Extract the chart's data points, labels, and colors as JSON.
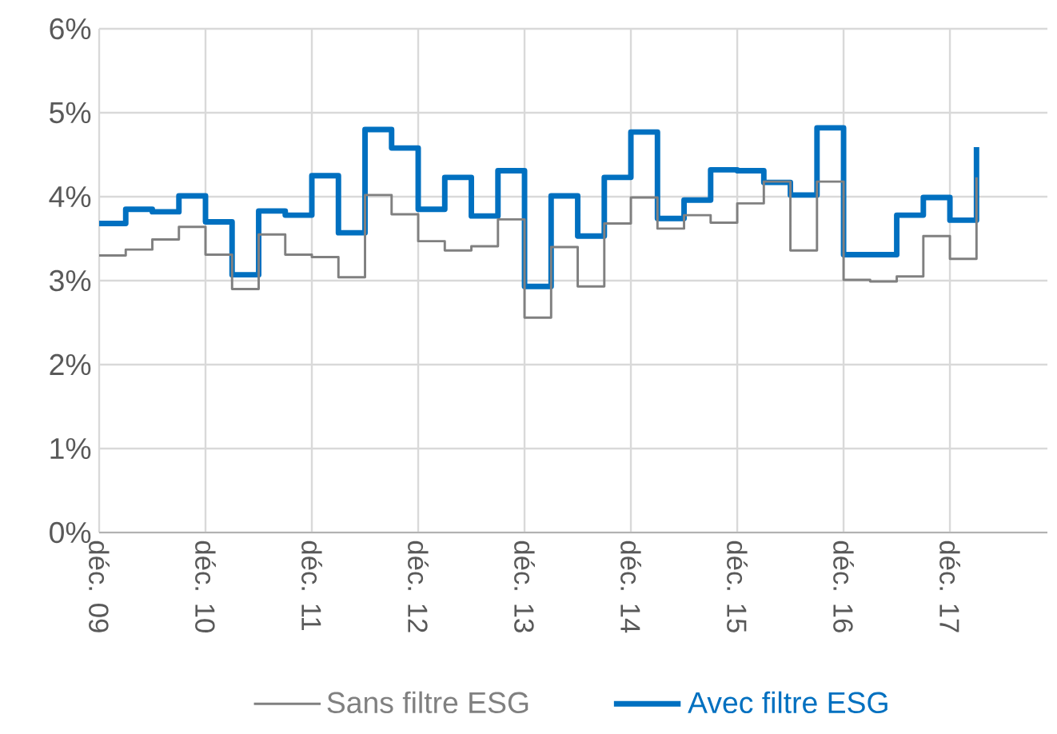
{
  "chart_data": {
    "type": "step",
    "x": [
      "2009-12",
      "2010-03",
      "2010-06",
      "2010-09",
      "2010-12",
      "2011-03",
      "2011-06",
      "2011-09",
      "2011-12",
      "2012-03",
      "2012-06",
      "2012-09",
      "2012-12",
      "2013-03",
      "2013-06",
      "2013-09",
      "2013-12",
      "2014-03",
      "2014-06",
      "2014-09",
      "2014-12",
      "2015-03",
      "2015-06",
      "2015-09",
      "2015-12",
      "2016-03",
      "2016-06",
      "2016-09",
      "2016-12",
      "2017-03",
      "2017-06",
      "2017-09",
      "2017-12",
      "2018-03"
    ],
    "series": [
      {
        "name": "Sans filtre ESG",
        "color": "#808080",
        "values": [
          3.3,
          3.37,
          3.49,
          3.64,
          3.31,
          2.9,
          3.55,
          3.31,
          3.28,
          3.04,
          4.02,
          3.79,
          3.47,
          3.36,
          3.41,
          3.73,
          2.56,
          3.4,
          2.93,
          3.68,
          3.99,
          3.62,
          3.78,
          3.69,
          3.92,
          4.18,
          3.36,
          4.18,
          3.01,
          2.99,
          3.05,
          3.53,
          3.26,
          4.23
        ]
      },
      {
        "name": "Avec filtre ESG",
        "color": "#0070c0",
        "values": [
          3.68,
          3.85,
          3.82,
          4.01,
          3.7,
          3.07,
          3.83,
          3.78,
          4.25,
          3.57,
          4.8,
          4.58,
          3.85,
          4.23,
          3.77,
          4.31,
          2.93,
          4.01,
          3.53,
          4.23,
          4.77,
          3.74,
          3.96,
          4.32,
          4.31,
          4.17,
          4.02,
          4.82,
          3.31,
          3.31,
          3.78,
          3.99,
          3.72,
          4.59
        ]
      }
    ],
    "xlim": [
      "2009-12",
      "2018-11"
    ],
    "xticks": [
      {
        "value": "2009-12",
        "label": "déc. 09"
      },
      {
        "value": "2010-12",
        "label": "déc. 10"
      },
      {
        "value": "2011-12",
        "label": "déc. 11"
      },
      {
        "value": "2012-12",
        "label": "déc. 12"
      },
      {
        "value": "2013-12",
        "label": "déc. 13"
      },
      {
        "value": "2014-12",
        "label": "déc. 14"
      },
      {
        "value": "2015-12",
        "label": "déc. 15"
      },
      {
        "value": "2016-12",
        "label": "déc. 16"
      },
      {
        "value": "2017-12",
        "label": "déc. 17"
      }
    ],
    "ylim": [
      0,
      6
    ],
    "yticks": [
      {
        "value": 0,
        "label": "0%"
      },
      {
        "value": 1,
        "label": "1%"
      },
      {
        "value": 2,
        "label": "2%"
      },
      {
        "value": 3,
        "label": "3%"
      },
      {
        "value": 4,
        "label": "4%"
      },
      {
        "value": 5,
        "label": "5%"
      },
      {
        "value": 6,
        "label": "6%"
      }
    ],
    "grid": true,
    "legend": "bottom"
  }
}
